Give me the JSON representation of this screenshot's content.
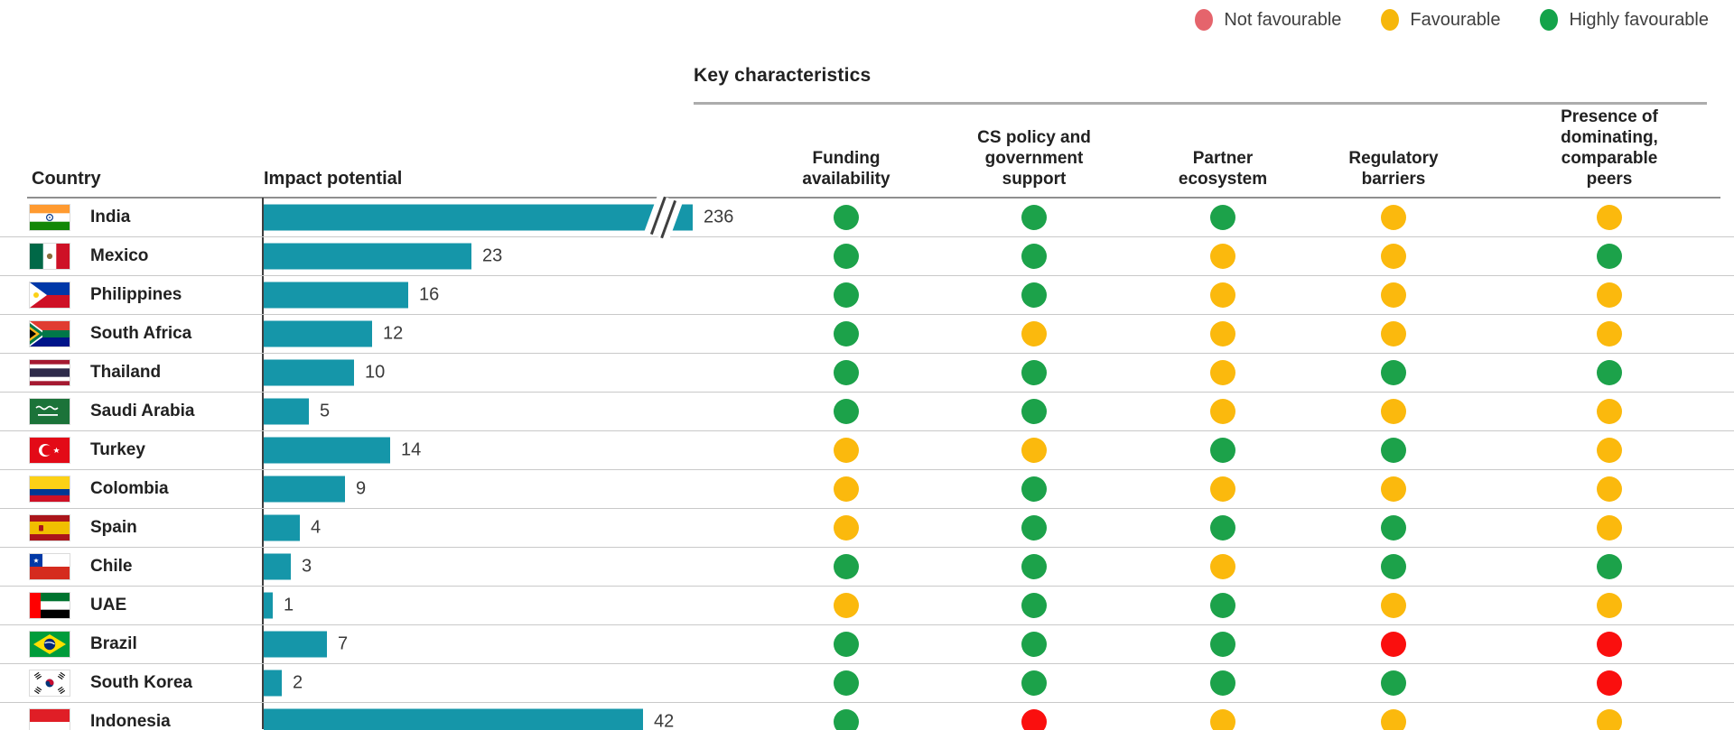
{
  "legend": {
    "items": [
      {
        "label": "Not favourable",
        "color": "#E5646C"
      },
      {
        "label": "Favourable",
        "color": "#F6B70B"
      },
      {
        "label": "Highly favourable",
        "color": "#14A34A"
      }
    ]
  },
  "table": {
    "section_title": "Key characteristics",
    "country_header": "Country",
    "impact_header": "Impact potential",
    "characteristic_headers": [
      "Funding\navailability",
      "CS policy and\ngovernment\nsupport",
      "Partner\necosystem",
      "Regulatory\nbarriers",
      "Presence of\ndominating,\ncomparable peers"
    ],
    "bar_color": "#1596A9",
    "rating_colors": {
      "H": "#1CA24A",
      "F": "#FBB90D",
      "N": "#FA0F0E"
    },
    "rows": [
      {
        "country": "India",
        "flag": "india-flag",
        "value": 236,
        "bar_break": true,
        "ratings": [
          "H",
          "H",
          "H",
          "F",
          "F"
        ]
      },
      {
        "country": "Mexico",
        "flag": "mexico-flag",
        "value": 23,
        "bar_break": false,
        "ratings": [
          "H",
          "H",
          "F",
          "F",
          "H"
        ]
      },
      {
        "country": "Philippines",
        "flag": "philippines-flag",
        "value": 16,
        "bar_break": false,
        "ratings": [
          "H",
          "H",
          "F",
          "F",
          "F"
        ]
      },
      {
        "country": "South Africa",
        "flag": "south-africa-flag",
        "value": 12,
        "bar_break": false,
        "ratings": [
          "H",
          "F",
          "F",
          "F",
          "F"
        ]
      },
      {
        "country": "Thailand",
        "flag": "thailand-flag",
        "value": 10,
        "bar_break": false,
        "ratings": [
          "H",
          "H",
          "F",
          "H",
          "H"
        ]
      },
      {
        "country": "Saudi Arabia",
        "flag": "saudi-arabia-flag",
        "value": 5,
        "bar_break": false,
        "ratings": [
          "H",
          "H",
          "F",
          "F",
          "F"
        ]
      },
      {
        "country": "Turkey",
        "flag": "turkey-flag",
        "value": 14,
        "bar_break": false,
        "ratings": [
          "F",
          "F",
          "H",
          "H",
          "F"
        ]
      },
      {
        "country": "Colombia",
        "flag": "colombia-flag",
        "value": 9,
        "bar_break": false,
        "ratings": [
          "F",
          "H",
          "F",
          "F",
          "F"
        ]
      },
      {
        "country": "Spain",
        "flag": "spain-flag",
        "value": 4,
        "bar_break": false,
        "ratings": [
          "F",
          "H",
          "H",
          "H",
          "F"
        ]
      },
      {
        "country": "Chile",
        "flag": "chile-flag",
        "value": 3,
        "bar_break": false,
        "ratings": [
          "H",
          "H",
          "F",
          "H",
          "H"
        ]
      },
      {
        "country": "UAE",
        "flag": "uae-flag",
        "value": 1,
        "bar_break": false,
        "ratings": [
          "F",
          "H",
          "H",
          "F",
          "F"
        ]
      },
      {
        "country": "Brazil",
        "flag": "brazil-flag",
        "value": 7,
        "bar_break": false,
        "ratings": [
          "H",
          "H",
          "H",
          "N",
          "N"
        ]
      },
      {
        "country": "South Korea",
        "flag": "south-korea-flag",
        "value": 2,
        "bar_break": false,
        "ratings": [
          "H",
          "H",
          "H",
          "H",
          "N"
        ]
      },
      {
        "country": "Indonesia",
        "flag": "indonesia-flag",
        "value": 42,
        "bar_break": false,
        "ratings": [
          "H",
          "N",
          "F",
          "F",
          "F"
        ]
      }
    ]
  },
  "chart_data": {
    "type": "bar",
    "title": "Key characteristics",
    "xlabel": "Impact potential",
    "categories": [
      "India",
      "Mexico",
      "Philippines",
      "South Africa",
      "Thailand",
      "Saudi Arabia",
      "Turkey",
      "Colombia",
      "Spain",
      "Chile",
      "UAE",
      "Brazil",
      "South Korea",
      "Indonesia"
    ],
    "values": [
      236,
      23,
      16,
      12,
      10,
      5,
      14,
      9,
      4,
      3,
      1,
      7,
      2,
      42
    ],
    "legend": [
      "Not favourable",
      "Favourable",
      "Highly favourable"
    ],
    "rating_scale": {
      "N": "Not favourable",
      "F": "Favourable",
      "H": "Highly favourable"
    },
    "rating_columns": [
      "Funding availability",
      "CS policy and government support",
      "Partner ecosystem",
      "Regulatory barriers",
      "Presence of dominating, comparable peers"
    ],
    "ratings": [
      [
        "H",
        "H",
        "H",
        "F",
        "F"
      ],
      [
        "H",
        "H",
        "F",
        "F",
        "H"
      ],
      [
        "H",
        "H",
        "F",
        "F",
        "F"
      ],
      [
        "H",
        "F",
        "F",
        "F",
        "F"
      ],
      [
        "H",
        "H",
        "F",
        "H",
        "H"
      ],
      [
        "H",
        "H",
        "F",
        "F",
        "F"
      ],
      [
        "F",
        "F",
        "H",
        "H",
        "F"
      ],
      [
        "F",
        "H",
        "F",
        "F",
        "F"
      ],
      [
        "F",
        "H",
        "H",
        "H",
        "F"
      ],
      [
        "H",
        "H",
        "F",
        "H",
        "H"
      ],
      [
        "F",
        "H",
        "H",
        "F",
        "F"
      ],
      [
        "H",
        "H",
        "H",
        "N",
        "N"
      ],
      [
        "H",
        "H",
        "H",
        "H",
        "N"
      ],
      [
        "H",
        "N",
        "F",
        "F",
        "F"
      ]
    ],
    "notes": "India bar drawn with an axis break (//) before its 236 label"
  }
}
